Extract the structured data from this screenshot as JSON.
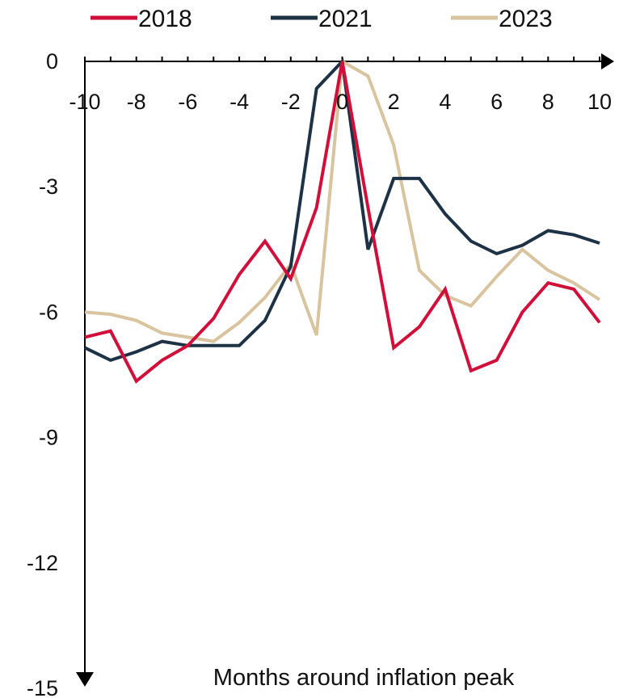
{
  "chart_data": {
    "type": "line",
    "title": "",
    "xlabel": "Months around inflation peak",
    "ylabel": "",
    "x": [
      -10,
      -9,
      -8,
      -7,
      -6,
      -5,
      -4,
      -3,
      -2,
      -1,
      0,
      1,
      2,
      3,
      4,
      5,
      6,
      7,
      8,
      9,
      10
    ],
    "xlim": [
      -10,
      10
    ],
    "ylim": [
      -15,
      0
    ],
    "x_ticks": [
      "-10",
      "-8",
      "-6",
      "-4",
      "-2",
      "0",
      "2",
      "4",
      "6",
      "8",
      "10"
    ],
    "y_ticks": [
      "0",
      "-3",
      "-6",
      "-9",
      "-12",
      "-15"
    ],
    "grid": false,
    "legend_position": "top",
    "series": [
      {
        "name": "2018",
        "color": "#d0103a",
        "values": [
          -6.6,
          -6.45,
          -7.65,
          -7.15,
          -6.8,
          -6.15,
          -5.1,
          -4.3,
          -5.2,
          -3.5,
          0,
          -3.5,
          -6.85,
          -6.35,
          -5.45,
          -7.4,
          -7.15,
          -6.0,
          -5.3,
          -5.45,
          -6.25
        ]
      },
      {
        "name": "2021",
        "color": "#1e3246",
        "values": [
          -6.85,
          -7.15,
          -6.95,
          -6.7,
          -6.8,
          -6.8,
          -6.8,
          -6.2,
          -4.9,
          -0.65,
          0,
          -4.5,
          -2.8,
          -2.8,
          -3.65,
          -4.3,
          -4.6,
          -4.4,
          -4.05,
          -4.15,
          -4.35
        ]
      },
      {
        "name": "2023",
        "color": "#d9c4a0",
        "values": [
          -6.0,
          -6.05,
          -6.2,
          -6.5,
          -6.6,
          -6.7,
          -6.25,
          -5.65,
          -4.85,
          -6.55,
          0,
          -0.35,
          -2.0,
          -5.0,
          -5.6,
          -5.85,
          -5.15,
          -4.5,
          -5.0,
          -5.3,
          -5.7
        ]
      }
    ]
  }
}
